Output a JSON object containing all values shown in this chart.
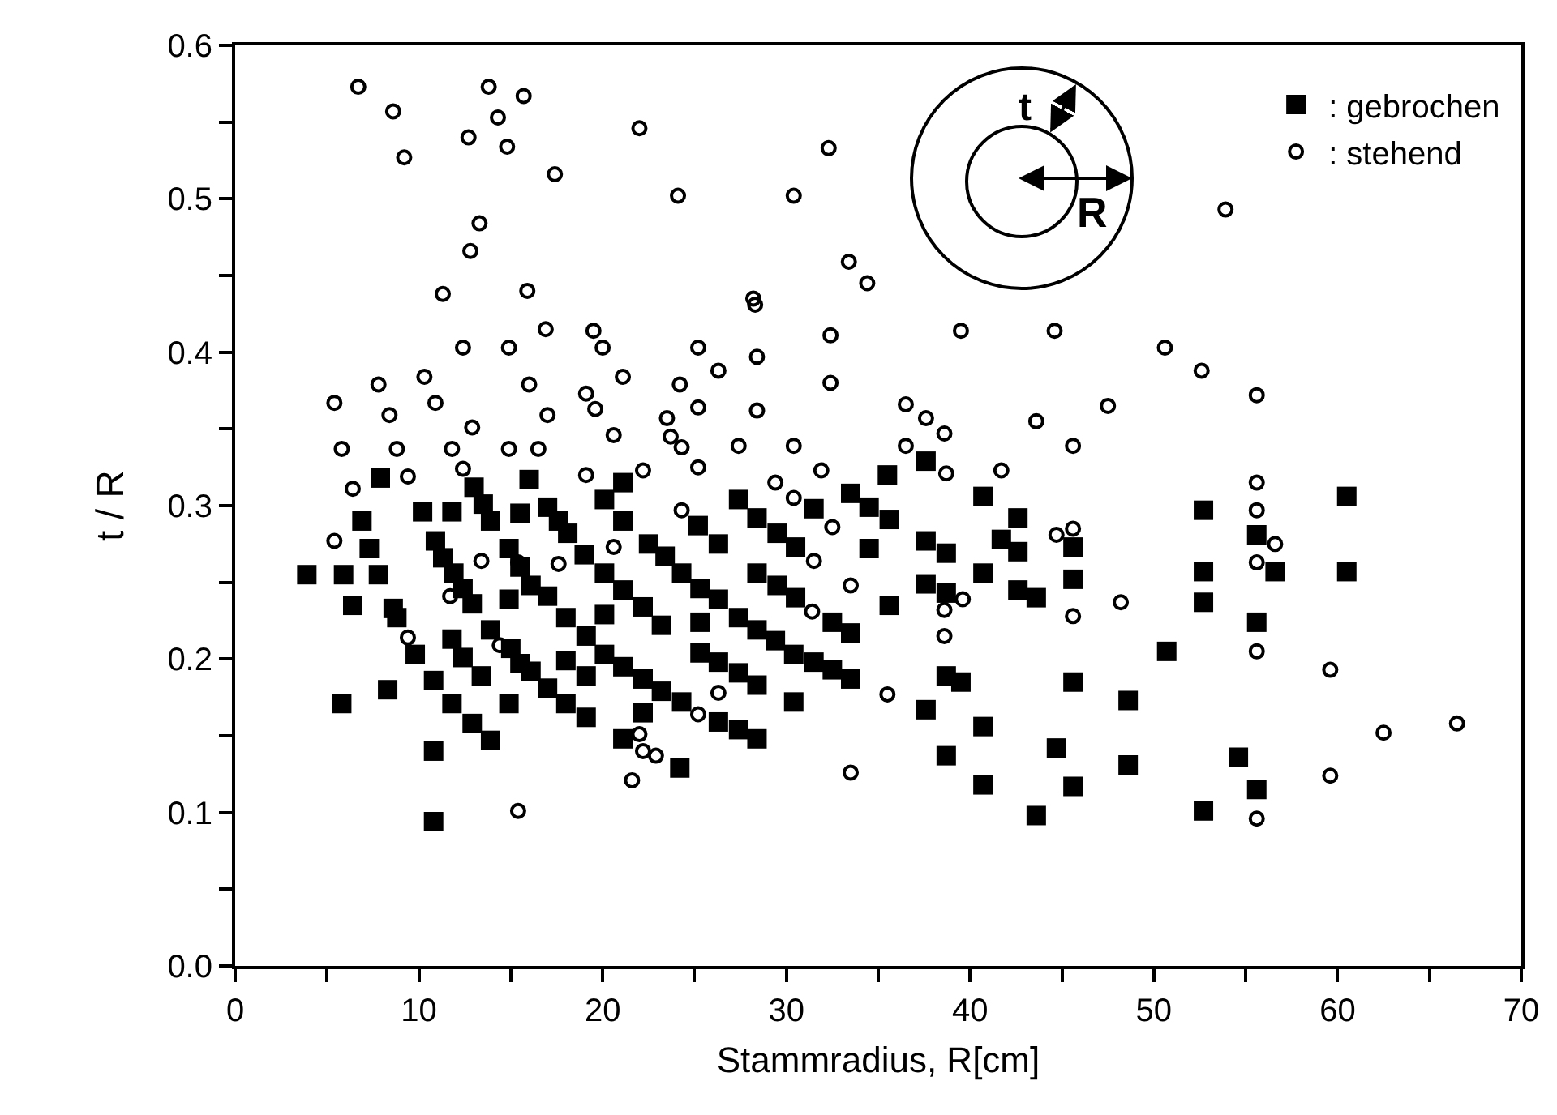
{
  "chart_data": {
    "type": "scatter",
    "xlabel": "Stammradius, R[cm]",
    "ylabel": "t / R",
    "annotations": [
      "t",
      "R"
    ],
    "xlim": [
      0,
      70
    ],
    "xticks": [
      0,
      {
        "value": 5,
        "label": null
      },
      10,
      {
        "value": 15,
        "label": null
      },
      20,
      {
        "value": 25,
        "label": null
      },
      30,
      {
        "value": 35,
        "label": null
      },
      40,
      {
        "value": 45,
        "label": null
      },
      50,
      {
        "value": 55,
        "label": null
      },
      60,
      {
        "value": 65,
        "label": null
      },
      70
    ],
    "ylim": [
      0,
      0.6
    ],
    "yticks": [
      {
        "value": 0,
        "label": "0.0"
      },
      {
        "value": 0.05,
        "label": null
      },
      {
        "value": 0.1,
        "label": "0.1"
      },
      {
        "value": 0.15,
        "label": null
      },
      {
        "value": 0.2,
        "label": "0.2"
      },
      {
        "value": 0.25,
        "label": null
      },
      {
        "value": 0.3,
        "label": "0.3"
      },
      {
        "value": 0.35,
        "label": null
      },
      {
        "value": 0.4,
        "label": "0.4"
      },
      {
        "value": 0.45,
        "label": null
      },
      {
        "value": 0.5,
        "label": "0.5"
      },
      {
        "value": 0.55,
        "label": null
      },
      {
        "value": 0.6,
        "label": "0.6"
      }
    ],
    "grid": false,
    "legend": "top right",
    "series": [
      {
        "name": ": gebrochen",
        "color": "#000000",
        "marker": "square",
        "x": [
          7.9,
          10.2,
          11.8,
          13.0,
          13.5,
          13.9,
          15.5,
          16.0,
          17.0,
          17.6,
          18.1,
          19.0,
          20.1,
          21.1,
          21.1,
          22.5,
          23.4,
          6.9,
          7.3,
          3.9,
          5.9,
          7.8,
          6.4,
          8.6,
          8.8,
          9.8,
          10.9,
          11.3,
          11.9,
          12.4,
          12.9,
          14.9,
          15.5,
          16.1,
          17.0,
          18.0,
          19.1,
          20.1,
          21.1,
          22.2,
          23.2,
          20.1,
          21.1,
          22.2,
          23.2,
          20.1,
          14.9,
          13.9,
          11.8,
          12.4,
          13.4,
          15.0,
          15.5,
          16.1,
          17.0,
          18.0,
          19.1,
          18.0,
          19.1,
          10.8,
          8.3,
          5.8,
          11.8,
          12.9,
          13.9,
          14.9,
          10.8,
          10.8,
          22.2,
          21.1,
          35.5,
          37.6,
          33.5,
          40.7,
          27.4,
          34.5,
          35.6,
          28.4,
          29.5,
          30.5,
          31.5,
          25.2,
          26.3,
          24.3,
          25.3,
          26.3,
          27.4,
          28.4,
          29.4,
          30.4,
          31.5,
          32.5,
          33.5,
          28.4,
          29.5,
          30.5,
          32.5,
          33.5,
          34.5,
          35.6,
          25.3,
          25.3,
          26.3,
          27.4,
          28.4,
          24.3,
          26.3,
          27.4,
          28.4,
          30.4,
          24.2,
          37.6,
          38.7,
          37.6,
          38.7,
          40.7,
          42.6,
          41.7,
          42.6,
          42.6,
          43.6,
          45.6,
          45.6,
          38.7,
          39.5,
          37.6,
          40.7,
          38.7,
          40.7,
          43.6,
          44.7,
          45.6,
          45.6,
          60.5,
          52.7,
          55.6,
          56.6,
          60.5,
          52.7,
          52.7,
          55.6,
          50.7,
          48.6,
          48.6,
          54.6,
          55.6,
          52.7
        ],
        "values": [
          0.318,
          0.296,
          0.296,
          0.312,
          0.301,
          0.29,
          0.295,
          0.317,
          0.299,
          0.29,
          0.282,
          0.268,
          0.304,
          0.315,
          0.29,
          0.275,
          0.267,
          0.29,
          0.272,
          0.255,
          0.255,
          0.255,
          0.235,
          0.233,
          0.227,
          0.203,
          0.277,
          0.266,
          0.256,
          0.246,
          0.236,
          0.272,
          0.26,
          0.248,
          0.241,
          0.227,
          0.215,
          0.203,
          0.195,
          0.187,
          0.179,
          0.256,
          0.245,
          0.234,
          0.222,
          0.229,
          0.239,
          0.219,
          0.213,
          0.201,
          0.189,
          0.207,
          0.197,
          0.192,
          0.181,
          0.171,
          0.162,
          0.199,
          0.189,
          0.186,
          0.18,
          0.171,
          0.171,
          0.158,
          0.147,
          0.171,
          0.14,
          0.094,
          0.165,
          0.148,
          0.32,
          0.329,
          0.308,
          0.306,
          0.304,
          0.299,
          0.291,
          0.292,
          0.282,
          0.273,
          0.298,
          0.287,
          0.275,
          0.256,
          0.246,
          0.239,
          0.227,
          0.219,
          0.212,
          0.203,
          0.198,
          0.193,
          0.187,
          0.256,
          0.248,
          0.24,
          0.224,
          0.217,
          0.272,
          0.235,
          0.224,
          0.204,
          0.198,
          0.191,
          0.183,
          0.172,
          0.159,
          0.154,
          0.148,
          0.172,
          0.129,
          0.277,
          0.269,
          0.249,
          0.243,
          0.256,
          0.292,
          0.278,
          0.27,
          0.245,
          0.24,
          0.273,
          0.252,
          0.189,
          0.185,
          0.167,
          0.156,
          0.137,
          0.118,
          0.098,
          0.142,
          0.185,
          0.117,
          0.306,
          0.297,
          0.281,
          0.257,
          0.257,
          0.257,
          0.237,
          0.224,
          0.205,
          0.173,
          0.131,
          0.136,
          0.115,
          0.101
        ]
      },
      {
        "name": ": stehend",
        "color": "#000000",
        "marker": "circle",
        "x": [
          9.4,
          6.4,
          12.4,
          19.1,
          22.2,
          5.4,
          13.4,
          15.4,
          17.6,
          20.6,
          11.7,
          9.4,
          14.4,
          22.0,
          22.2,
          22.9,
          21.6,
          15.4,
          6.7,
          13.8,
          15.7,
          8.6,
          14.3,
          12.7,
          14.8,
          9.2,
          17.4,
          22.0,
          13.3,
          12.8,
          11.3,
          15.9,
          16.9,
          19.5,
          20.0,
          12.4,
          14.9,
          21.1,
          10.3,
          7.8,
          16.0,
          5.4,
          10.9,
          19.1,
          19.6,
          8.4,
          17.0,
          12.9,
          20.6,
          23.5,
          5.8,
          8.8,
          11.8,
          14.9,
          16.5,
          32.3,
          24.1,
          30.4,
          33.4,
          34.4,
          28.2,
          28.3,
          32.4,
          39.5,
          44.6,
          25.2,
          26.3,
          28.4,
          24.2,
          32.4,
          25.2,
          28.4,
          36.5,
          37.6,
          38.6,
          43.6,
          45.6,
          23.7,
          24.3,
          27.4,
          30.4,
          36.5,
          25.2,
          29.4,
          31.9,
          38.7,
          41.7,
          30.4,
          24.3,
          32.5,
          31.5,
          33.5,
          31.4,
          38.6,
          38.6,
          39.6,
          44.7,
          45.6,
          45.6,
          26.3,
          25.2,
          35.5,
          33.5,
          53.9,
          50.6,
          52.6,
          47.5,
          55.6,
          55.6,
          55.6,
          56.6,
          55.6,
          48.2,
          55.6,
          59.6,
          62.5,
          66.5,
          59.6,
          55.6
        ],
        "values": [
          0.319,
          0.311,
          0.324,
          0.32,
          0.323,
          0.277,
          0.264,
          0.263,
          0.262,
          0.273,
          0.241,
          0.214,
          0.209,
          0.151,
          0.14,
          0.137,
          0.121,
          0.101,
          0.573,
          0.573,
          0.567,
          0.557,
          0.553,
          0.54,
          0.534,
          0.527,
          0.516,
          0.546,
          0.484,
          0.466,
          0.438,
          0.44,
          0.415,
          0.414,
          0.403,
          0.403,
          0.403,
          0.384,
          0.384,
          0.379,
          0.379,
          0.367,
          0.367,
          0.373,
          0.363,
          0.359,
          0.359,
          0.351,
          0.346,
          0.357,
          0.337,
          0.337,
          0.337,
          0.337,
          0.337,
          0.533,
          0.502,
          0.502,
          0.459,
          0.445,
          0.435,
          0.431,
          0.411,
          0.414,
          0.414,
          0.403,
          0.388,
          0.397,
          0.379,
          0.38,
          0.364,
          0.362,
          0.366,
          0.357,
          0.347,
          0.355,
          0.339,
          0.345,
          0.338,
          0.339,
          0.339,
          0.339,
          0.325,
          0.315,
          0.323,
          0.321,
          0.323,
          0.305,
          0.297,
          0.286,
          0.264,
          0.248,
          0.231,
          0.232,
          0.215,
          0.239,
          0.281,
          0.285,
          0.228,
          0.178,
          0.164,
          0.177,
          0.126,
          0.493,
          0.403,
          0.388,
          0.365,
          0.372,
          0.315,
          0.297,
          0.275,
          0.263,
          0.237,
          0.205,
          0.193,
          0.152,
          0.158,
          0.124,
          0.096
        ]
      }
    ]
  }
}
